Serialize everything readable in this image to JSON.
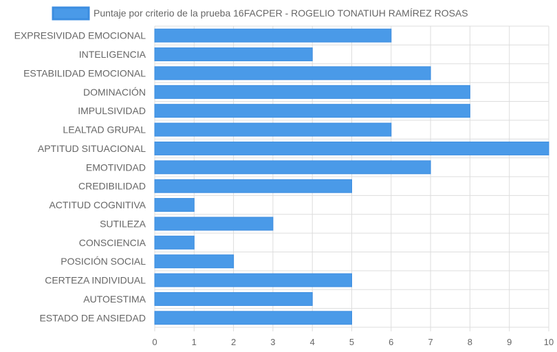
{
  "chart_data": {
    "type": "bar",
    "orientation": "horizontal",
    "categories": [
      "EXPRESIVIDAD EMOCIONAL",
      "INTELIGENCIA",
      "ESTABILIDAD EMOCIONAL",
      "DOMINACIÓN",
      "IMPULSIVIDAD",
      "LEALTAD GRUPAL",
      "APTITUD SITUACIONAL",
      "EMOTIVIDAD",
      "CREDIBILIDAD",
      "ACTITUD COGNITIVA",
      "SUTILEZA",
      "CONSCIENCIA",
      "POSICIÓN SOCIAL",
      "CERTEZA INDIVIDUAL",
      "AUTOESTIMA",
      "ESTADO DE ANSIEDAD"
    ],
    "series": [
      {
        "name": "Puntaje por criterio de la prueba 16FACPER - ROGELIO TONATIUH RAMÍREZ ROSAS",
        "values": [
          6,
          4,
          7,
          8,
          8,
          6,
          10,
          7,
          5,
          1,
          3,
          1,
          2,
          5,
          4,
          5
        ]
      }
    ],
    "xlim": [
      0,
      10
    ],
    "xticks": [
      "0",
      "1",
      "2",
      "3",
      "4",
      "5",
      "6",
      "7",
      "8",
      "9",
      "10"
    ],
    "grid": true,
    "legend": "top-center",
    "colors": {
      "bar_fill": "#4a9ae8",
      "bar_stroke": "#3c8de0",
      "grid": "#dddddd",
      "text": "#666666"
    }
  }
}
